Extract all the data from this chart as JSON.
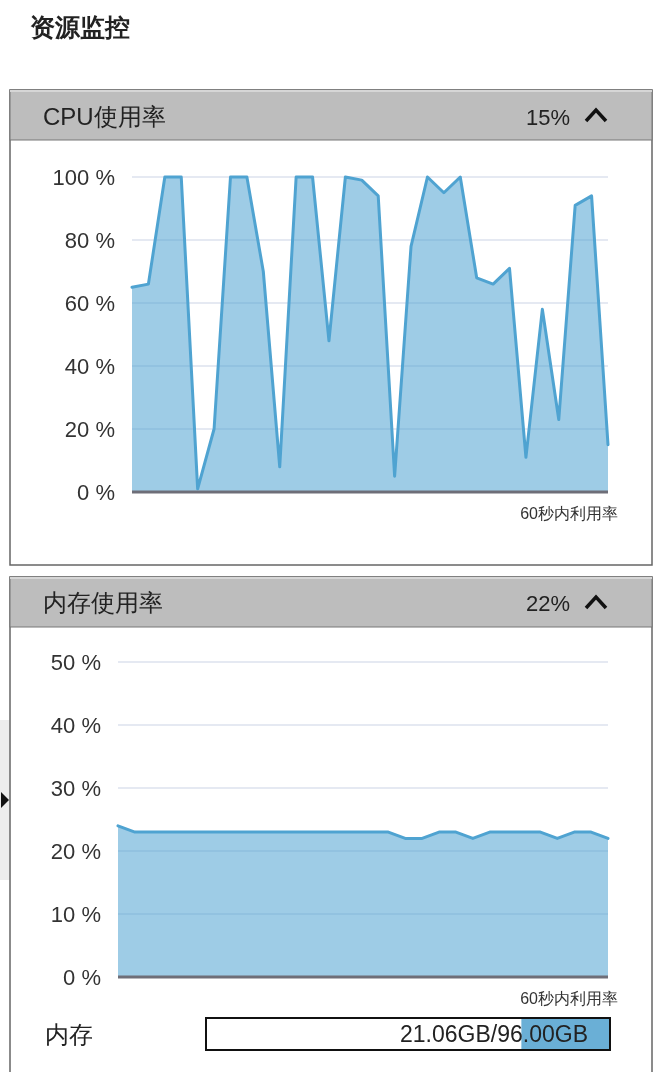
{
  "chart_data": [
    {
      "type": "area",
      "title": "CPU使用率",
      "annotations": [
        "资源监控",
        "15%"
      ],
      "xlabel": "60秒内利用率",
      "categories": [
        null,
        null,
        null,
        null,
        null,
        null,
        null,
        null,
        null,
        null,
        null,
        null,
        null,
        null,
        null,
        null,
        null,
        null,
        null,
        null,
        null,
        null,
        null,
        null,
        null,
        null,
        null,
        null,
        null,
        null
      ],
      "series": [
        {
          "color": "#4fa3d1",
          "values": [
            65,
            66,
            100,
            100,
            1,
            20,
            100,
            100,
            70,
            8,
            100,
            100,
            48,
            100,
            99,
            94,
            5,
            78,
            100,
            95,
            100,
            68,
            66,
            71,
            11,
            58,
            23,
            91,
            94,
            15
          ]
        }
      ],
      "ylim": [
        0,
        100
      ],
      "yticks": [
        {
          "value": 0,
          "label": "0 %"
        },
        {
          "value": 20,
          "label": "20 %"
        },
        {
          "value": 40,
          "label": "40 %"
        },
        {
          "value": 60,
          "label": "60 %"
        },
        {
          "value": 80,
          "label": "80 %"
        },
        {
          "value": 100,
          "label": "100 %"
        }
      ],
      "grid": "y"
    },
    {
      "type": "area",
      "title": "内存使用率",
      "annotations": [
        "22%"
      ],
      "xlabel": "60秒内利用率",
      "categories": [
        null,
        null,
        null,
        null,
        null,
        null,
        null,
        null,
        null,
        null,
        null,
        null,
        null,
        null,
        null,
        null,
        null,
        null,
        null,
        null,
        null,
        null,
        null,
        null,
        null,
        null,
        null,
        null,
        null,
        null
      ],
      "series": [
        {
          "color": "#4fa3d1",
          "values": [
            24,
            23,
            23,
            23,
            23,
            23,
            23,
            23,
            23,
            23,
            23,
            23,
            23,
            23,
            23,
            23,
            23,
            22,
            22,
            23,
            23,
            22,
            23,
            23,
            23,
            23,
            22,
            23,
            23,
            22
          ]
        }
      ],
      "ylim": [
        0,
        50
      ],
      "yticks": [
        {
          "value": 0,
          "label": "0 %"
        },
        {
          "value": 10,
          "label": "10 %"
        },
        {
          "value": 20,
          "label": "20 %"
        },
        {
          "value": 30,
          "label": "30 %"
        },
        {
          "value": 40,
          "label": "40 %"
        },
        {
          "value": 50,
          "label": "50 %"
        }
      ],
      "grid": "y"
    },
    {
      "type": "bar",
      "orientation": "horizontal",
      "categories": [
        "内存"
      ],
      "series": [
        {
          "color": "#6aafd6",
          "values": [
            21.06
          ],
          "value_labels": [
            "21.06GB/96.00GB"
          ]
        }
      ],
      "xlim": [
        96,
        0
      ],
      "tick_labels": "y"
    }
  ]
}
